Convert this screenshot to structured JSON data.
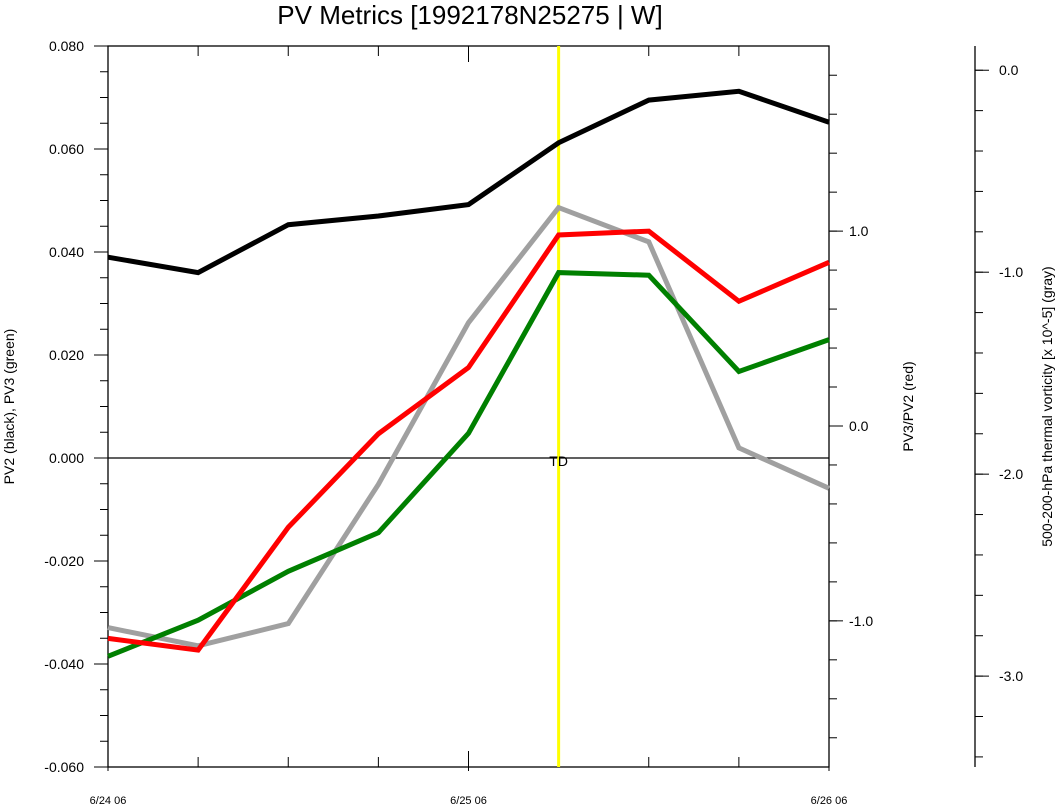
{
  "chart_data": {
    "type": "line",
    "title": "PV Metrics [1992178N25275 | W]",
    "x_categories": [
      "6/24 06",
      "",
      "",
      "",
      "6/25 06",
      "",
      "",
      "",
      "6/26 06"
    ],
    "x_tick_labels": [
      "6/24 06",
      "6/25 06",
      "6/26 06"
    ],
    "left_axis": {
      "label": "PV2 (black), PV3 (green)",
      "ylim": [
        -0.06,
        0.08
      ],
      "ticks": [
        -0.06,
        -0.04,
        -0.02,
        0.0,
        0.02,
        0.04,
        0.06,
        0.08
      ],
      "tick_labels": [
        "-0.060",
        "-0.040",
        "-0.020",
        "0.000",
        "0.020",
        "0.040",
        "0.060",
        "0.080"
      ]
    },
    "right_axis": {
      "label": "PV3/PV2 (red)",
      "ylim": [
        -1.75,
        1.95
      ],
      "ticks": [
        -1.0,
        0.0,
        1.0
      ],
      "tick_labels": [
        "-1.0",
        "0.0",
        "1.0"
      ]
    },
    "far_right_axis": {
      "label": "500-200-hPa thermal vorticity [x 10^-5] (gray)",
      "ylim": [
        -3.45,
        0.12
      ],
      "ticks": [
        -3.0,
        -2.0,
        -1.0,
        0.0
      ],
      "tick_labels": [
        "-3.0",
        "-2.0",
        "-1.0",
        "0.0"
      ]
    },
    "series": [
      {
        "axis": "left",
        "color": "#000000",
        "values": [
          0.039,
          0.036,
          0.0453,
          0.047,
          0.0492,
          0.0612,
          0.0695,
          0.0712,
          0.0652
        ]
      },
      {
        "axis": "left",
        "color": "#008000",
        "values": [
          -0.0385,
          -0.0315,
          -0.022,
          -0.0145,
          0.0048,
          0.036,
          0.0355,
          0.0168,
          0.023
        ]
      },
      {
        "axis": "right",
        "color": "#ff0000",
        "values": [
          -1.09,
          -1.15,
          -0.52,
          -0.04,
          0.3,
          0.98,
          1.0,
          0.64,
          0.84
        ]
      },
      {
        "axis": "far_right",
        "color": "#a0a0a0",
        "values": [
          -2.76,
          -2.85,
          -2.74,
          -2.05,
          -1.25,
          -0.68,
          -0.85,
          -1.87,
          -2.07
        ]
      }
    ],
    "annotations": [
      {
        "text": "TD",
        "x_index": 5,
        "y": 0.0,
        "axis": "left"
      }
    ],
    "event_line": {
      "x_index": 5,
      "color": "#ffff00"
    },
    "zero_line": {
      "axis": "left",
      "y": 0.0
    }
  }
}
